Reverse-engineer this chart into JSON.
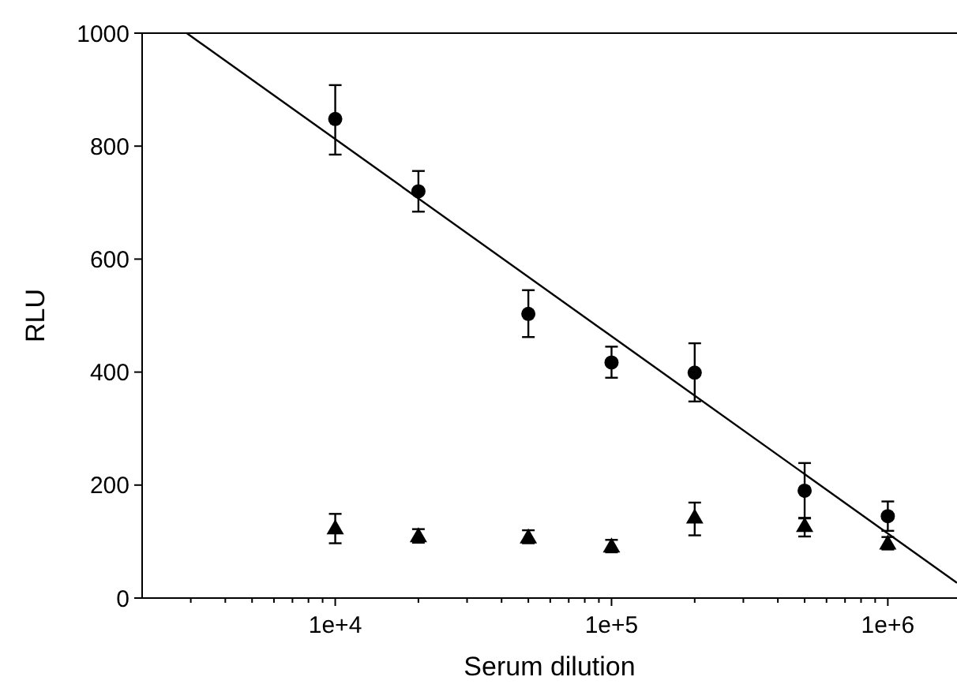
{
  "chart_data": {
    "type": "scatter",
    "xlabel": "Serum dilution",
    "ylabel": "RLU",
    "log": "x",
    "grid": false,
    "xlim": [
      2000,
      1780000
    ],
    "ylim": [
      0,
      1000
    ],
    "xticks": [
      {
        "value": 3000,
        "label": null
      },
      {
        "value": 4000,
        "label": null
      },
      {
        "value": 5000,
        "label": null
      },
      {
        "value": 6000,
        "label": null
      },
      {
        "value": 7000,
        "label": null
      },
      {
        "value": 8000,
        "label": null
      },
      {
        "value": 9000,
        "label": null
      },
      {
        "value": 10000,
        "label": "1e+4"
      },
      {
        "value": 20000,
        "label": null
      },
      {
        "value": 30000,
        "label": null
      },
      {
        "value": 40000,
        "label": null
      },
      {
        "value": 50000,
        "label": null
      },
      {
        "value": 60000,
        "label": null
      },
      {
        "value": 70000,
        "label": null
      },
      {
        "value": 80000,
        "label": null
      },
      {
        "value": 90000,
        "label": null
      },
      {
        "value": 100000,
        "label": "1e+5"
      },
      {
        "value": 200000,
        "label": null
      },
      {
        "value": 300000,
        "label": null
      },
      {
        "value": 400000,
        "label": null
      },
      {
        "value": 500000,
        "label": null
      },
      {
        "value": 600000,
        "label": null
      },
      {
        "value": 700000,
        "label": null
      },
      {
        "value": 800000,
        "label": null
      },
      {
        "value": 900000,
        "label": null
      },
      {
        "value": 1000000,
        "label": "1e+6"
      }
    ],
    "yticks": [
      0,
      200,
      400,
      600,
      800,
      1000
    ],
    "series": [
      {
        "marker": "circle",
        "color": "#000000",
        "x": [
          10000,
          20000,
          50000,
          100000,
          200000,
          500000,
          1000000
        ],
        "values": [
          848,
          720,
          503,
          417,
          399,
          190,
          145
        ],
        "errors": [
          [
            785,
            908
          ],
          [
            684,
            756
          ],
          [
            462,
            545
          ],
          [
            390,
            445
          ],
          [
            348,
            451
          ],
          [
            141,
            239
          ],
          [
            119,
            171
          ]
        ]
      },
      {
        "marker": "triangle",
        "color": "#000000",
        "x": [
          10000,
          20000,
          50000,
          100000,
          200000,
          500000,
          1000000
        ],
        "values": [
          124,
          110,
          108,
          92,
          143,
          128,
          97
        ],
        "errors": [
          [
            97,
            149
          ],
          [
            98,
            122
          ],
          [
            97,
            120
          ],
          [
            81,
            103
          ],
          [
            111,
            169
          ],
          [
            109,
            142
          ],
          [
            86,
            108
          ]
        ]
      },
      {
        "type": "line",
        "marker": "none",
        "color": "#000000",
        "x": [
          2900,
          1780000
        ],
        "values": [
          1000,
          27
        ]
      }
    ]
  }
}
